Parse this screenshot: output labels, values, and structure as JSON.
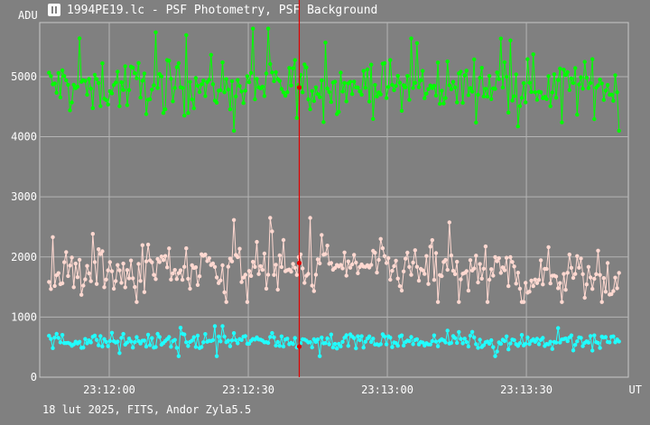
{
  "window": {
    "title": "1994PE19.lc - PSF Photometry, PSF Background",
    "icon": "chart-window-icon"
  },
  "footer": {
    "info": "18 lut 2025, FITS, Andor Zyla5.5"
  },
  "chart_data": {
    "type": "line",
    "ylabel": "ADU",
    "xlabel": "UT",
    "y_ticks": [
      "0",
      "1000",
      "2000",
      "3000",
      "4000",
      "5000"
    ],
    "x_ticks": [
      "23:12:00",
      "23:12:30",
      "23:13:00",
      "23:13:30"
    ],
    "ylim": [
      0,
      5900
    ],
    "xlim": [
      "23:11:45",
      "23:13:52"
    ],
    "cursor_x": "23:12:41",
    "grid": true,
    "series_colors": [
      "#00ff00",
      "#ffd8d0",
      "#20ffff"
    ],
    "cursor_color": "#e00000",
    "series": [
      {
        "color": "#00ff00",
        "approx_mean": 4850,
        "noise_range": [
          4100,
          5800
        ],
        "points_per_series": 300
      },
      {
        "color": "#ffd8d0",
        "approx_mean": 1700,
        "noise_range": [
          1250,
          2800
        ],
        "points_per_series": 300
      },
      {
        "color": "#20ffff",
        "approx_mean": 600,
        "noise_range": [
          350,
          850
        ],
        "points_per_series": 300
      }
    ]
  }
}
